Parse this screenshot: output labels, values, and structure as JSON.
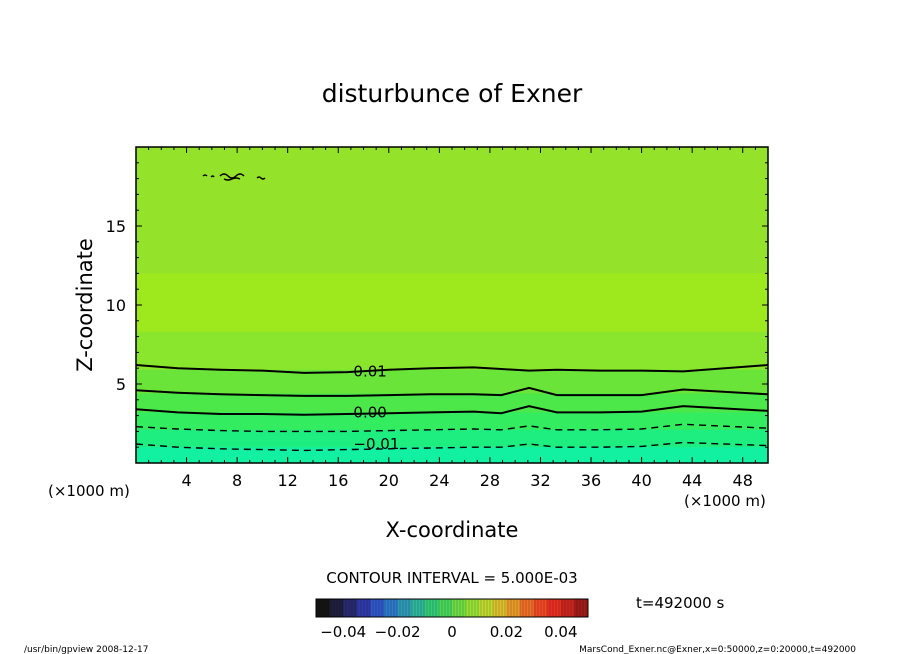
{
  "chart_data": {
    "type": "contour",
    "title": "disturbunce of Exner",
    "xlabel": "X-coordinate",
    "ylabel": "Z-coordinate",
    "x_unit_left": "(×1000 m)",
    "x_unit_right": "(×1000 m)",
    "xlim": [
      0,
      50
    ],
    "ylim": [
      0,
      20
    ],
    "x_ticks": [
      "4",
      "8",
      "12",
      "16",
      "20",
      "24",
      "28",
      "32",
      "36",
      "40",
      "44",
      "48"
    ],
    "y_ticks": [
      "5",
      "10",
      "15"
    ],
    "contour_interval_text": "CONTOUR INTERVAL = 5.000E-03",
    "time_text": "t=492000 s",
    "colorbar_ticks": [
      "−0.04",
      "−0.02",
      "0",
      "0.02",
      "0.04"
    ],
    "colorbar_range": [
      -0.05,
      0.05
    ],
    "contour_labels": [
      {
        "text": "0.01",
        "value": 0.01,
        "x": 17.2,
        "z": 5.8
      },
      {
        "text": "0.00",
        "value": 0.0,
        "x": 17.2,
        "z": 3.2
      },
      {
        "text": "−0.01",
        "value": -0.01,
        "x": 17.2,
        "z": 1.2
      }
    ],
    "contours": [
      {
        "value": 0.01,
        "style": "solid",
        "z": [
          6.2,
          6.0,
          5.9,
          5.85,
          5.7,
          5.75,
          5.9,
          6.0,
          6.05,
          5.95,
          5.85,
          5.9,
          5.85,
          5.85,
          5.8,
          6.2
        ]
      },
      {
        "value": 0.005,
        "style": "solid",
        "z": [
          4.6,
          4.45,
          4.35,
          4.3,
          4.25,
          4.25,
          4.3,
          4.35,
          4.35,
          4.3,
          4.75,
          4.3,
          4.3,
          4.3,
          4.65,
          4.35
        ]
      },
      {
        "value": 0.0,
        "style": "solid",
        "z": [
          3.4,
          3.2,
          3.1,
          3.1,
          3.05,
          3.1,
          3.15,
          3.2,
          3.25,
          3.15,
          3.6,
          3.2,
          3.2,
          3.25,
          3.6,
          3.3
        ]
      },
      {
        "value": -0.005,
        "style": "dashed",
        "z": [
          2.3,
          2.15,
          2.05,
          2.0,
          2.0,
          2.0,
          2.05,
          2.1,
          2.15,
          2.1,
          2.35,
          2.1,
          2.1,
          2.15,
          2.45,
          2.2
        ]
      },
      {
        "value": -0.01,
        "style": "dashed",
        "z": [
          1.2,
          1.0,
          0.9,
          0.85,
          0.8,
          0.85,
          0.9,
          0.95,
          1.0,
          1.0,
          1.2,
          1.0,
          1.0,
          1.05,
          1.3,
          1.1
        ]
      }
    ],
    "contour_x": [
      0,
      3.3,
      6.7,
      10,
      13.3,
      16.7,
      20,
      23.3,
      26.7,
      28.9,
      31.1,
      33.3,
      36.7,
      40,
      43.3,
      50
    ],
    "color_bands": [
      {
        "z_top": 1.0,
        "color": "#12f0a2"
      },
      {
        "z_top": 2.1,
        "color": "#1eee80"
      },
      {
        "z_top": 3.2,
        "color": "#33ec60"
      },
      {
        "z_top": 4.4,
        "color": "#4ce84a"
      },
      {
        "z_top": 5.9,
        "color": "#6be43a"
      },
      {
        "z_top": 8.3,
        "color": "#8ae62c"
      },
      {
        "z_top": 12.0,
        "color": "#9ee81e"
      },
      {
        "z_top": 20.0,
        "color": "#94e32a"
      }
    ],
    "colorbar_colors": [
      "#141414",
      "#1f1f3c",
      "#282a70",
      "#2e3aa8",
      "#2f58c6",
      "#2f79c9",
      "#2f9ab8",
      "#2fb89c",
      "#34cc78",
      "#4ad65a",
      "#6edd45",
      "#98e236",
      "#bfdb30",
      "#dcc02e",
      "#e99a2b",
      "#ee7028",
      "#ef4a24",
      "#e82f22",
      "#c8261f",
      "#a01c18"
    ],
    "footer_left": "/usr/bin/gpview   2008-12-17",
    "footer_right": "MarsCond_Exner.nc@Exner,x=0:50000,z=0:20000,t=492000"
  }
}
